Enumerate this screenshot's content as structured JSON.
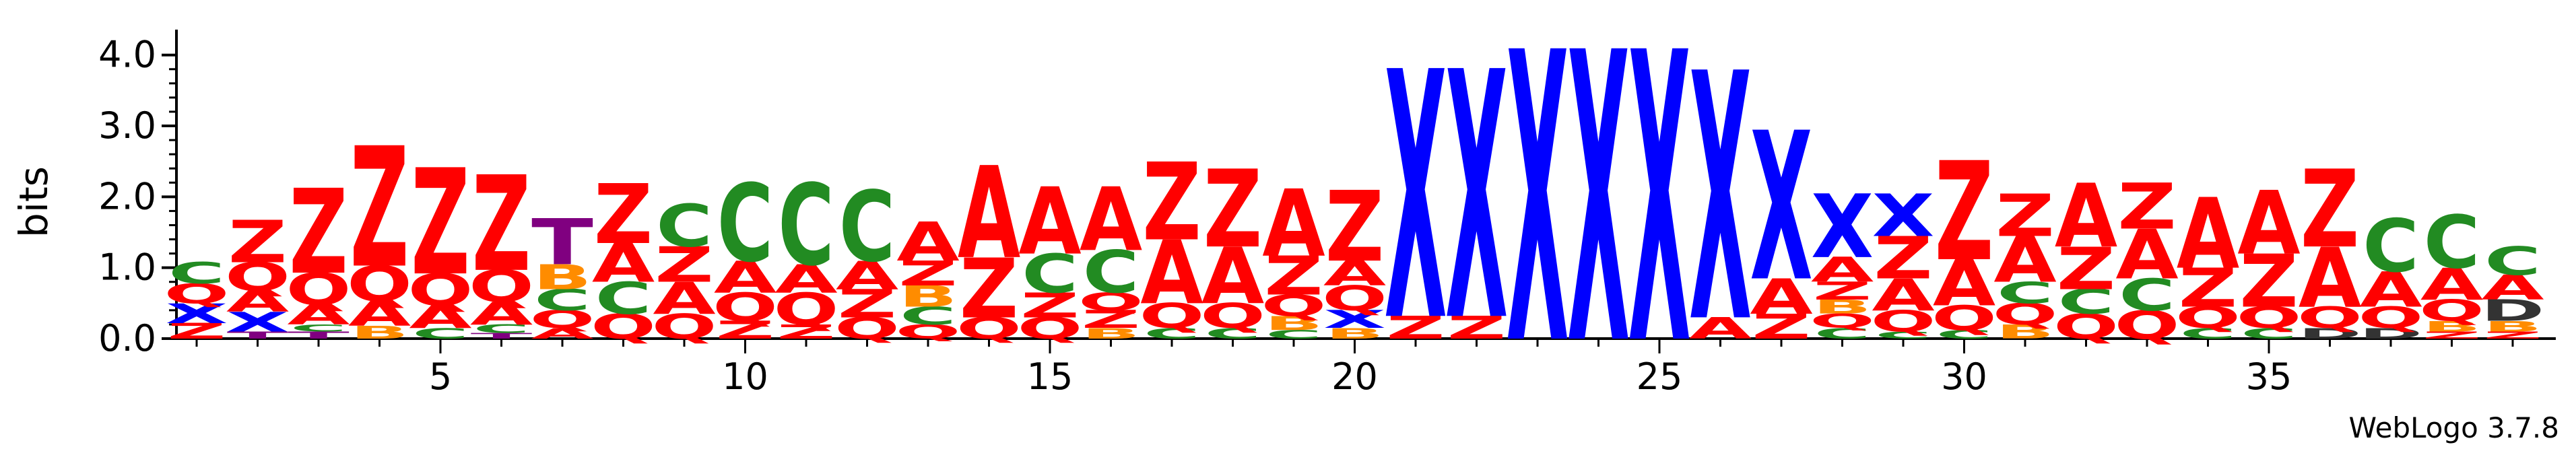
{
  "chart_data": {
    "type": "sequence-logo",
    "ylabel": "bits",
    "ylim": [
      0,
      4.32
    ],
    "yticks": [
      "0.0",
      "1.0",
      "2.0",
      "3.0",
      "4.0"
    ],
    "xticks": [
      "5",
      "10",
      "15",
      "20",
      "25",
      "30",
      "35"
    ],
    "credit": "WebLogo 3.7.8",
    "colors": {
      "X": "#0000ff",
      "Z": "#ff0000",
      "A": "#ff0000",
      "Q": "#ff0000",
      "C": "#228b22",
      "B": "#ff8c00",
      "T": "#800080"
    },
    "positions": [
      {
        "pos": 1,
        "stack": [
          [
            "Z",
            0.22
          ],
          [
            "X",
            0.28
          ],
          [
            "Q",
            0.28
          ],
          [
            "C",
            0.3
          ]
        ]
      },
      {
        "pos": 2,
        "stack": [
          [
            "T",
            0.1
          ],
          [
            "X",
            0.28
          ],
          [
            "A",
            0.3
          ],
          [
            "Q",
            0.4
          ],
          [
            "Z",
            0.6
          ]
        ]
      },
      {
        "pos": 3,
        "stack": [
          [
            "T",
            0.1
          ],
          [
            "C",
            0.1
          ],
          [
            "A",
            0.28
          ],
          [
            "Q",
            0.45
          ],
          [
            "Z",
            1.2
          ]
        ]
      },
      {
        "pos": 4,
        "stack": [
          [
            "B",
            0.18
          ],
          [
            "A",
            0.35
          ],
          [
            "Q",
            0.5
          ],
          [
            "Z",
            1.7
          ]
        ]
      },
      {
        "pos": 5,
        "stack": [
          [
            "C",
            0.15
          ],
          [
            "A",
            0.32
          ],
          [
            "Q",
            0.45
          ],
          [
            "Z",
            1.5
          ]
        ]
      },
      {
        "pos": 6,
        "stack": [
          [
            "T",
            0.08
          ],
          [
            "C",
            0.12
          ],
          [
            "A",
            0.32
          ],
          [
            "Q",
            0.45
          ],
          [
            "Z",
            1.35
          ]
        ]
      },
      {
        "pos": 7,
        "stack": [
          [
            "A",
            0.15
          ],
          [
            "Q",
            0.25
          ],
          [
            "C",
            0.3
          ],
          [
            "B",
            0.35
          ],
          [
            "T",
            0.65
          ]
        ]
      },
      {
        "pos": 8,
        "stack": [
          [
            "Q",
            0.35
          ],
          [
            "C",
            0.45
          ],
          [
            "A",
            0.55
          ],
          [
            "Z",
            0.85
          ]
        ]
      },
      {
        "pos": 9,
        "stack": [
          [
            "Q",
            0.35
          ],
          [
            "A",
            0.45
          ],
          [
            "Z",
            0.5
          ],
          [
            "C",
            0.6
          ]
        ]
      },
      {
        "pos": 10,
        "stack": [
          [
            "Z",
            0.25
          ],
          [
            "Q",
            0.4
          ],
          [
            "A",
            0.45
          ],
          [
            "C",
            1.1
          ]
        ]
      },
      {
        "pos": 11,
        "stack": [
          [
            "Z",
            0.2
          ],
          [
            "Q",
            0.45
          ],
          [
            "A",
            0.4
          ],
          [
            "C",
            1.15
          ]
        ]
      },
      {
        "pos": 12,
        "stack": [
          [
            "Q",
            0.3
          ],
          [
            "Z",
            0.4
          ],
          [
            "A",
            0.4
          ],
          [
            "C",
            1.0
          ]
        ]
      },
      {
        "pos": 13,
        "stack": [
          [
            "Q",
            0.2
          ],
          [
            "C",
            0.25
          ],
          [
            "B",
            0.3
          ],
          [
            "Z",
            0.35
          ],
          [
            "A",
            0.55
          ]
        ]
      },
      {
        "pos": 14,
        "stack": [
          [
            "Q",
            0.3
          ],
          [
            "Z",
            0.85
          ],
          [
            "A",
            1.3
          ]
        ]
      },
      {
        "pos": 15,
        "stack": [
          [
            "Q",
            0.3
          ],
          [
            "Z",
            0.35
          ],
          [
            "C",
            0.55
          ],
          [
            "A",
            0.95
          ]
        ]
      },
      {
        "pos": 16,
        "stack": [
          [
            "B",
            0.15
          ],
          [
            "Z",
            0.25
          ],
          [
            "Q",
            0.25
          ],
          [
            "C",
            0.6
          ],
          [
            "A",
            0.9
          ]
        ]
      },
      {
        "pos": 17,
        "stack": [
          [
            "C",
            0.15
          ],
          [
            "Q",
            0.35
          ],
          [
            "A",
            0.9
          ],
          [
            "Z",
            1.1
          ]
        ]
      },
      {
        "pos": 18,
        "stack": [
          [
            "C",
            0.15
          ],
          [
            "Q",
            0.35
          ],
          [
            "A",
            0.8
          ],
          [
            "Z",
            1.1
          ]
        ]
      },
      {
        "pos": 19,
        "stack": [
          [
            "C",
            0.12
          ],
          [
            "B",
            0.2
          ],
          [
            "Q",
            0.3
          ],
          [
            "Z",
            0.55
          ],
          [
            "A",
            0.95
          ]
        ]
      },
      {
        "pos": 20,
        "stack": [
          [
            "B",
            0.15
          ],
          [
            "X",
            0.25
          ],
          [
            "Q",
            0.35
          ],
          [
            "A",
            0.35
          ],
          [
            "Z",
            1.0
          ]
        ]
      },
      {
        "pos": 21,
        "stack": [
          [
            "Z",
            0.32
          ],
          [
            "X",
            3.5
          ]
        ]
      },
      {
        "pos": 22,
        "stack": [
          [
            "Z",
            0.32
          ],
          [
            "X",
            3.5
          ]
        ]
      },
      {
        "pos": 23,
        "stack": [
          [
            "X",
            4.1
          ]
        ]
      },
      {
        "pos": 24,
        "stack": [
          [
            "X",
            4.1
          ]
        ]
      },
      {
        "pos": 25,
        "stack": [
          [
            "X",
            4.1
          ]
        ]
      },
      {
        "pos": 26,
        "stack": [
          [
            "A",
            0.3
          ],
          [
            "X",
            3.5
          ]
        ]
      },
      {
        "pos": 27,
        "stack": [
          [
            "Z",
            0.35
          ],
          [
            "A",
            0.5
          ],
          [
            "X",
            2.1
          ]
        ]
      },
      {
        "pos": 28,
        "stack": [
          [
            "C",
            0.15
          ],
          [
            "Q",
            0.2
          ],
          [
            "B",
            0.2
          ],
          [
            "Z",
            0.25
          ],
          [
            "A",
            0.35
          ],
          [
            "X",
            0.9
          ]
        ]
      },
      {
        "pos": 29,
        "stack": [
          [
            "C",
            0.1
          ],
          [
            "Q",
            0.3
          ],
          [
            "A",
            0.45
          ],
          [
            "Z",
            0.6
          ],
          [
            "X",
            0.6
          ]
        ]
      },
      {
        "pos": 30,
        "stack": [
          [
            "C",
            0.12
          ],
          [
            "Q",
            0.35
          ],
          [
            "A",
            0.65
          ],
          [
            "Z",
            1.4
          ]
        ]
      },
      {
        "pos": 31,
        "stack": [
          [
            "B",
            0.2
          ],
          [
            "Q",
            0.3
          ],
          [
            "C",
            0.3
          ],
          [
            "A",
            0.65
          ],
          [
            "Z",
            0.6
          ]
        ]
      },
      {
        "pos": 32,
        "stack": [
          [
            "Q",
            0.35
          ],
          [
            "C",
            0.35
          ],
          [
            "Z",
            0.6
          ],
          [
            "A",
            0.9
          ]
        ]
      },
      {
        "pos": 33,
        "stack": [
          [
            "Q",
            0.4
          ],
          [
            "C",
            0.45
          ],
          [
            "A",
            0.7
          ],
          [
            "Z",
            0.65
          ]
        ]
      },
      {
        "pos": 34,
        "stack": [
          [
            "C",
            0.15
          ],
          [
            "Q",
            0.3
          ],
          [
            "Z",
            0.55
          ],
          [
            "A",
            1.0
          ]
        ]
      },
      {
        "pos": 35,
        "stack": [
          [
            "C",
            0.15
          ],
          [
            "Q",
            0.3
          ],
          [
            "Z",
            0.75
          ],
          [
            "A",
            0.9
          ]
        ]
      },
      {
        "pos": 36,
        "stack": [
          [
            "D",
            0.15
          ],
          [
            "Q",
            0.3
          ],
          [
            "A",
            0.85
          ],
          [
            "Z",
            1.1
          ]
        ]
      },
      {
        "pos": 37,
        "stack": [
          [
            "D",
            0.15
          ],
          [
            "Q",
            0.3
          ],
          [
            "A",
            0.5
          ],
          [
            "C",
            0.75
          ]
        ]
      },
      {
        "pos": 38,
        "stack": [
          [
            "Z",
            0.1
          ],
          [
            "B",
            0.15
          ],
          [
            "Q",
            0.3
          ],
          [
            "A",
            0.45
          ],
          [
            "C",
            0.75
          ]
        ]
      },
      {
        "pos": 39,
        "stack": [
          [
            "Z",
            0.1
          ],
          [
            "B",
            0.15
          ],
          [
            "D",
            0.3
          ],
          [
            "A",
            0.35
          ],
          [
            "C",
            0.4
          ]
        ]
      }
    ]
  }
}
